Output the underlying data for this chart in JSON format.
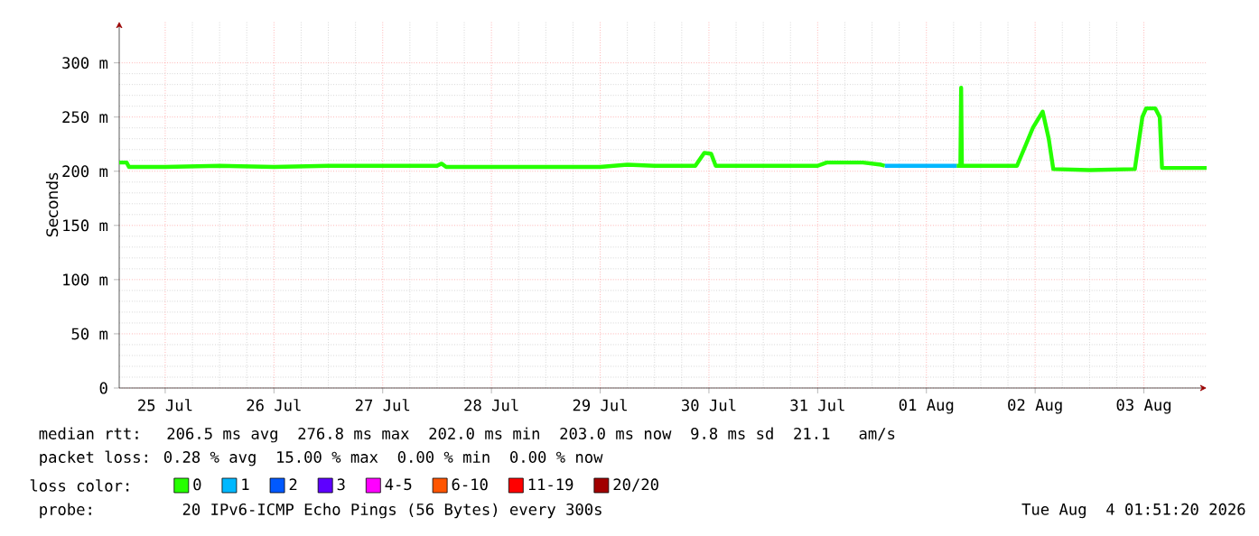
{
  "chart_data": {
    "type": "line",
    "ylabel": "Seconds",
    "legend_title": "loss color:",
    "xlim": [
      "2026-07-25T01:51",
      "2026-08-04T01:51"
    ],
    "xticks": [
      {
        "value": "2026-07-25T12:00",
        "label": "25 Jul"
      },
      {
        "value": "2026-07-26T12:00",
        "label": "26 Jul"
      },
      {
        "value": "2026-07-27T12:00",
        "label": "27 Jul"
      },
      {
        "value": "2026-07-28T12:00",
        "label": "28 Jul"
      },
      {
        "value": "2026-07-29T12:00",
        "label": "29 Jul"
      },
      {
        "value": "2026-07-30T12:00",
        "label": "30 Jul"
      },
      {
        "value": "2026-07-31T12:00",
        "label": "31 Jul"
      },
      {
        "value": "2026-08-01T12:00",
        "label": "01 Aug"
      },
      {
        "value": "2026-08-02T12:00",
        "label": "02 Aug"
      },
      {
        "value": "2026-08-03T12:00",
        "label": "03 Aug"
      }
    ],
    "ylim": [
      0,
      338
    ],
    "yticks": [
      0,
      {
        "value": 50,
        "label": "50 m"
      },
      {
        "value": 100,
        "label": "100 m"
      },
      {
        "value": 150,
        "label": "150 m"
      },
      {
        "value": 200,
        "label": "200 m"
      },
      {
        "value": 250,
        "label": "250 m"
      },
      {
        "value": 300,
        "label": "300 m"
      }
    ],
    "grid": true,
    "legend": "bottom",
    "series": [
      {
        "name": "0",
        "color": "#26ff00",
        "x": [
          "2026-07-25T01:51",
          "2026-07-25T03:30",
          "2026-07-25T04:00",
          "2026-07-25T12:00",
          "2026-07-26T00:00",
          "2026-07-26T12:00",
          "2026-07-27T00:00",
          "2026-07-27T12:00",
          "2026-07-28T00:00",
          "2026-07-28T01:00",
          "2026-07-28T02:00",
          "2026-07-28T12:00",
          "2026-07-29T00:00",
          "2026-07-29T12:00",
          "2026-07-29T18:00",
          "2026-07-30T00:00",
          "2026-07-30T09:00",
          "2026-07-30T11:00",
          "2026-07-30T12:30",
          "2026-07-30T13:30",
          "2026-07-31T00:00",
          "2026-07-31T12:00",
          "2026-07-31T14:00",
          "2026-07-31T22:00",
          "2026-08-01T02:00",
          "2026-08-01T02:50",
          "2026-08-01T10:00",
          "2026-08-01T18:40",
          "2026-08-01T19:30",
          "2026-08-01T19:40",
          "2026-08-01T19:50",
          "2026-08-02T08:00",
          "2026-08-02T10:00",
          "2026-08-02T11:30",
          "2026-08-02T13:40",
          "2026-08-02T15:00",
          "2026-08-02T16:00",
          "2026-08-03T00:00",
          "2026-08-03T10:00",
          "2026-08-03T11:40",
          "2026-08-03T12:30",
          "2026-08-03T14:30",
          "2026-08-03T15:30",
          "2026-08-03T16:00",
          "2026-08-04T01:51"
        ],
        "values": [
          208,
          208,
          204,
          204,
          205,
          204,
          205,
          205,
          205,
          207,
          204,
          204,
          204,
          204,
          206,
          205,
          205,
          217,
          216,
          205,
          205,
          205,
          208,
          208,
          206,
          205,
          null,
          205,
          205,
          277,
          205,
          205,
          225,
          240,
          255,
          230,
          202,
          201,
          202,
          250,
          258,
          258,
          250,
          203,
          203
        ]
      },
      {
        "name": "1",
        "color": "#00b8ff",
        "x": [
          "2026-08-01T02:50",
          "2026-08-01T10:00",
          "2026-08-01T18:40"
        ],
        "values": [
          205,
          205,
          205
        ]
      },
      {
        "name": "2",
        "color": "#0059ff"
      },
      {
        "name": "3",
        "color": "#5e00ff"
      },
      {
        "name": "4-5",
        "color": "#ff00ff"
      },
      {
        "name": "6-10",
        "color": "#ff5500"
      },
      {
        "name": "11-19",
        "color": "#ff0000"
      },
      {
        "name": "20/20",
        "color": "#a10000"
      }
    ],
    "annotations": [
      "median rtt:  206.5 ms avg  276.8 ms max  202.0 ms min  203.0 ms now  9.8 ms sd  21.1   am/s",
      "packet loss: 0.28 % avg  15.00 % max  0.00 % min  0.00 % now",
      "probe:       20 IPv6-ICMP Echo Pings (56 Bytes) every 300s",
      "Tue Aug  4 01:51:20 2026"
    ]
  }
}
